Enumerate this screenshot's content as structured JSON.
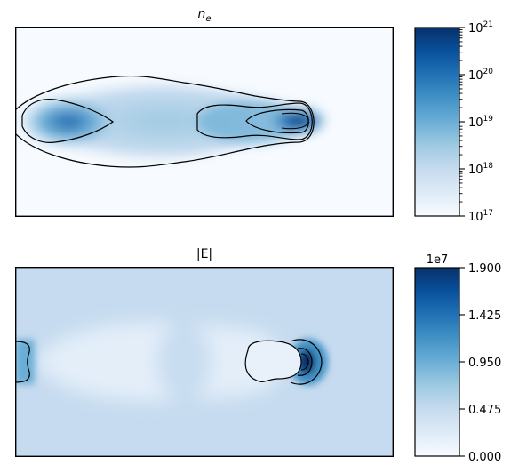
{
  "chart_data": [
    {
      "type": "heatmap",
      "title_var": "n",
      "title_sub": "e",
      "colormap": "Blues",
      "colorbar": {
        "scale": "log",
        "range": [
          1e+17,
          1e+21
        ],
        "ticks": [
          {
            "base": "10",
            "exp": "17",
            "value": 1e+17
          },
          {
            "base": "10",
            "exp": "18",
            "value": 1e+18
          },
          {
            "base": "10",
            "exp": "19",
            "value": 1e+19
          },
          {
            "base": "10",
            "exp": "20",
            "value": 1e+20
          },
          {
            "base": "10",
            "exp": "21",
            "value": 1e+21
          }
        ]
      },
      "axes_ticks_visible": false
    },
    {
      "type": "heatmap",
      "title": "|E|",
      "colormap": "Blues",
      "colorbar": {
        "scale": "linear",
        "multiplier": "1e7",
        "range": [
          0.0,
          1.9
        ],
        "ticks": [
          "0.000",
          "0.475",
          "0.950",
          "1.425",
          "1.900"
        ]
      },
      "axes_ticks_visible": false
    }
  ]
}
